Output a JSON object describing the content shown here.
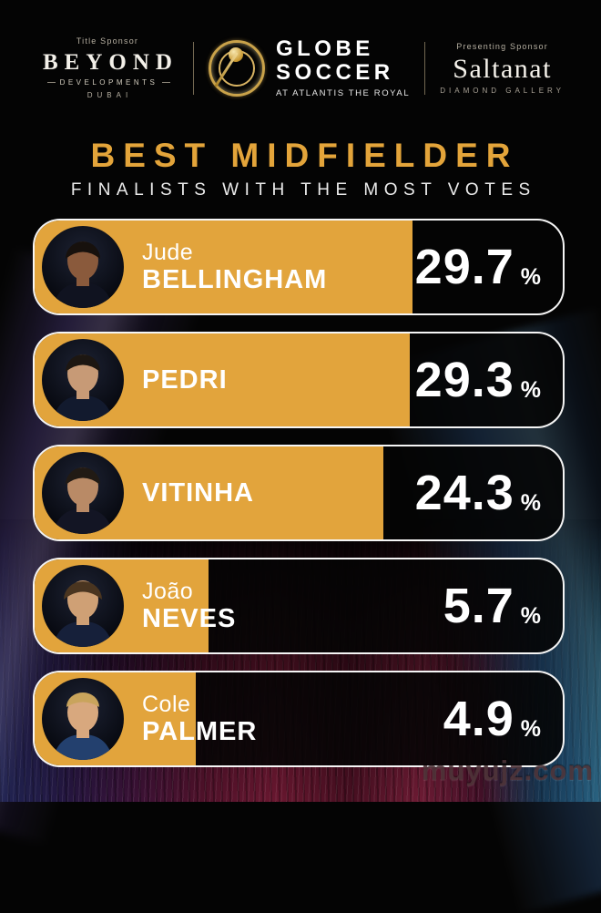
{
  "sponsors": {
    "title_sponsor_label": "Title Sponsor",
    "beyond_name": "BEYOND",
    "beyond_sub": "DEVELOPMENTS",
    "beyond_city": "DUBAI",
    "globe_line1": "GLOBE",
    "globe_line2": "SOCCER",
    "globe_tagline": "AT ATLANTIS THE ROYAL",
    "presenting_sponsor_label": "Presenting Sponsor",
    "saltanat_name": "Saltanat",
    "saltanat_sub": "DIAMOND GALLERY"
  },
  "title": "BEST MIDFIELDER",
  "subtitle": "FINALISTS WITH THE MOST VOTES",
  "watermark": "muyujz.com",
  "colors": {
    "gold": "#E2A43C",
    "title_gold": "#E3A43A",
    "bar_border": "#FFFFFF",
    "bar_dark": "#050505",
    "text_white": "#FFFFFF"
  },
  "chart_data": {
    "type": "bar",
    "title": "BEST MIDFIELDER",
    "subtitle": "FINALISTS WITH THE MOST VOTES",
    "unit": "%",
    "ylim": [
      0,
      100
    ],
    "legend": "none",
    "grid": false,
    "categories": [
      "Jude BELLINGHAM",
      "PEDRI",
      "VITINHA",
      "João NEVES",
      "Cole PALMER"
    ],
    "values": [
      29.7,
      29.3,
      24.3,
      5.7,
      4.9
    ],
    "players": [
      {
        "first": "Jude",
        "last": "BELLINGHAM",
        "value": "29.7",
        "fill_pct": 71.5,
        "photo": {
          "skin": "#8a5a3c",
          "hair": "#17110d",
          "shirt": "#101320"
        }
      },
      {
        "first": "",
        "last": "PEDRI",
        "value": "29.3",
        "fill_pct": 71.0,
        "photo": {
          "skin": "#c79a76",
          "hair": "#1d1712",
          "shirt": "#121a2e"
        }
      },
      {
        "first": "",
        "last": "VITINHA",
        "value": "24.3",
        "fill_pct": 66.0,
        "photo": {
          "skin": "#b98a66",
          "hair": "#211a14",
          "shirt": "#131524"
        }
      },
      {
        "first": "João",
        "last": "NEVES",
        "value": "5.7",
        "fill_pct": 33.0,
        "photo": {
          "skin": "#cfa075",
          "hair": "#4a3520",
          "shirt": "#16203a"
        }
      },
      {
        "first": "Cole",
        "last": "PALMER",
        "value": "4.9",
        "fill_pct": 30.5,
        "photo": {
          "skin": "#d8a87e",
          "hair": "#c9a45c",
          "shirt": "#23406e"
        }
      }
    ]
  }
}
